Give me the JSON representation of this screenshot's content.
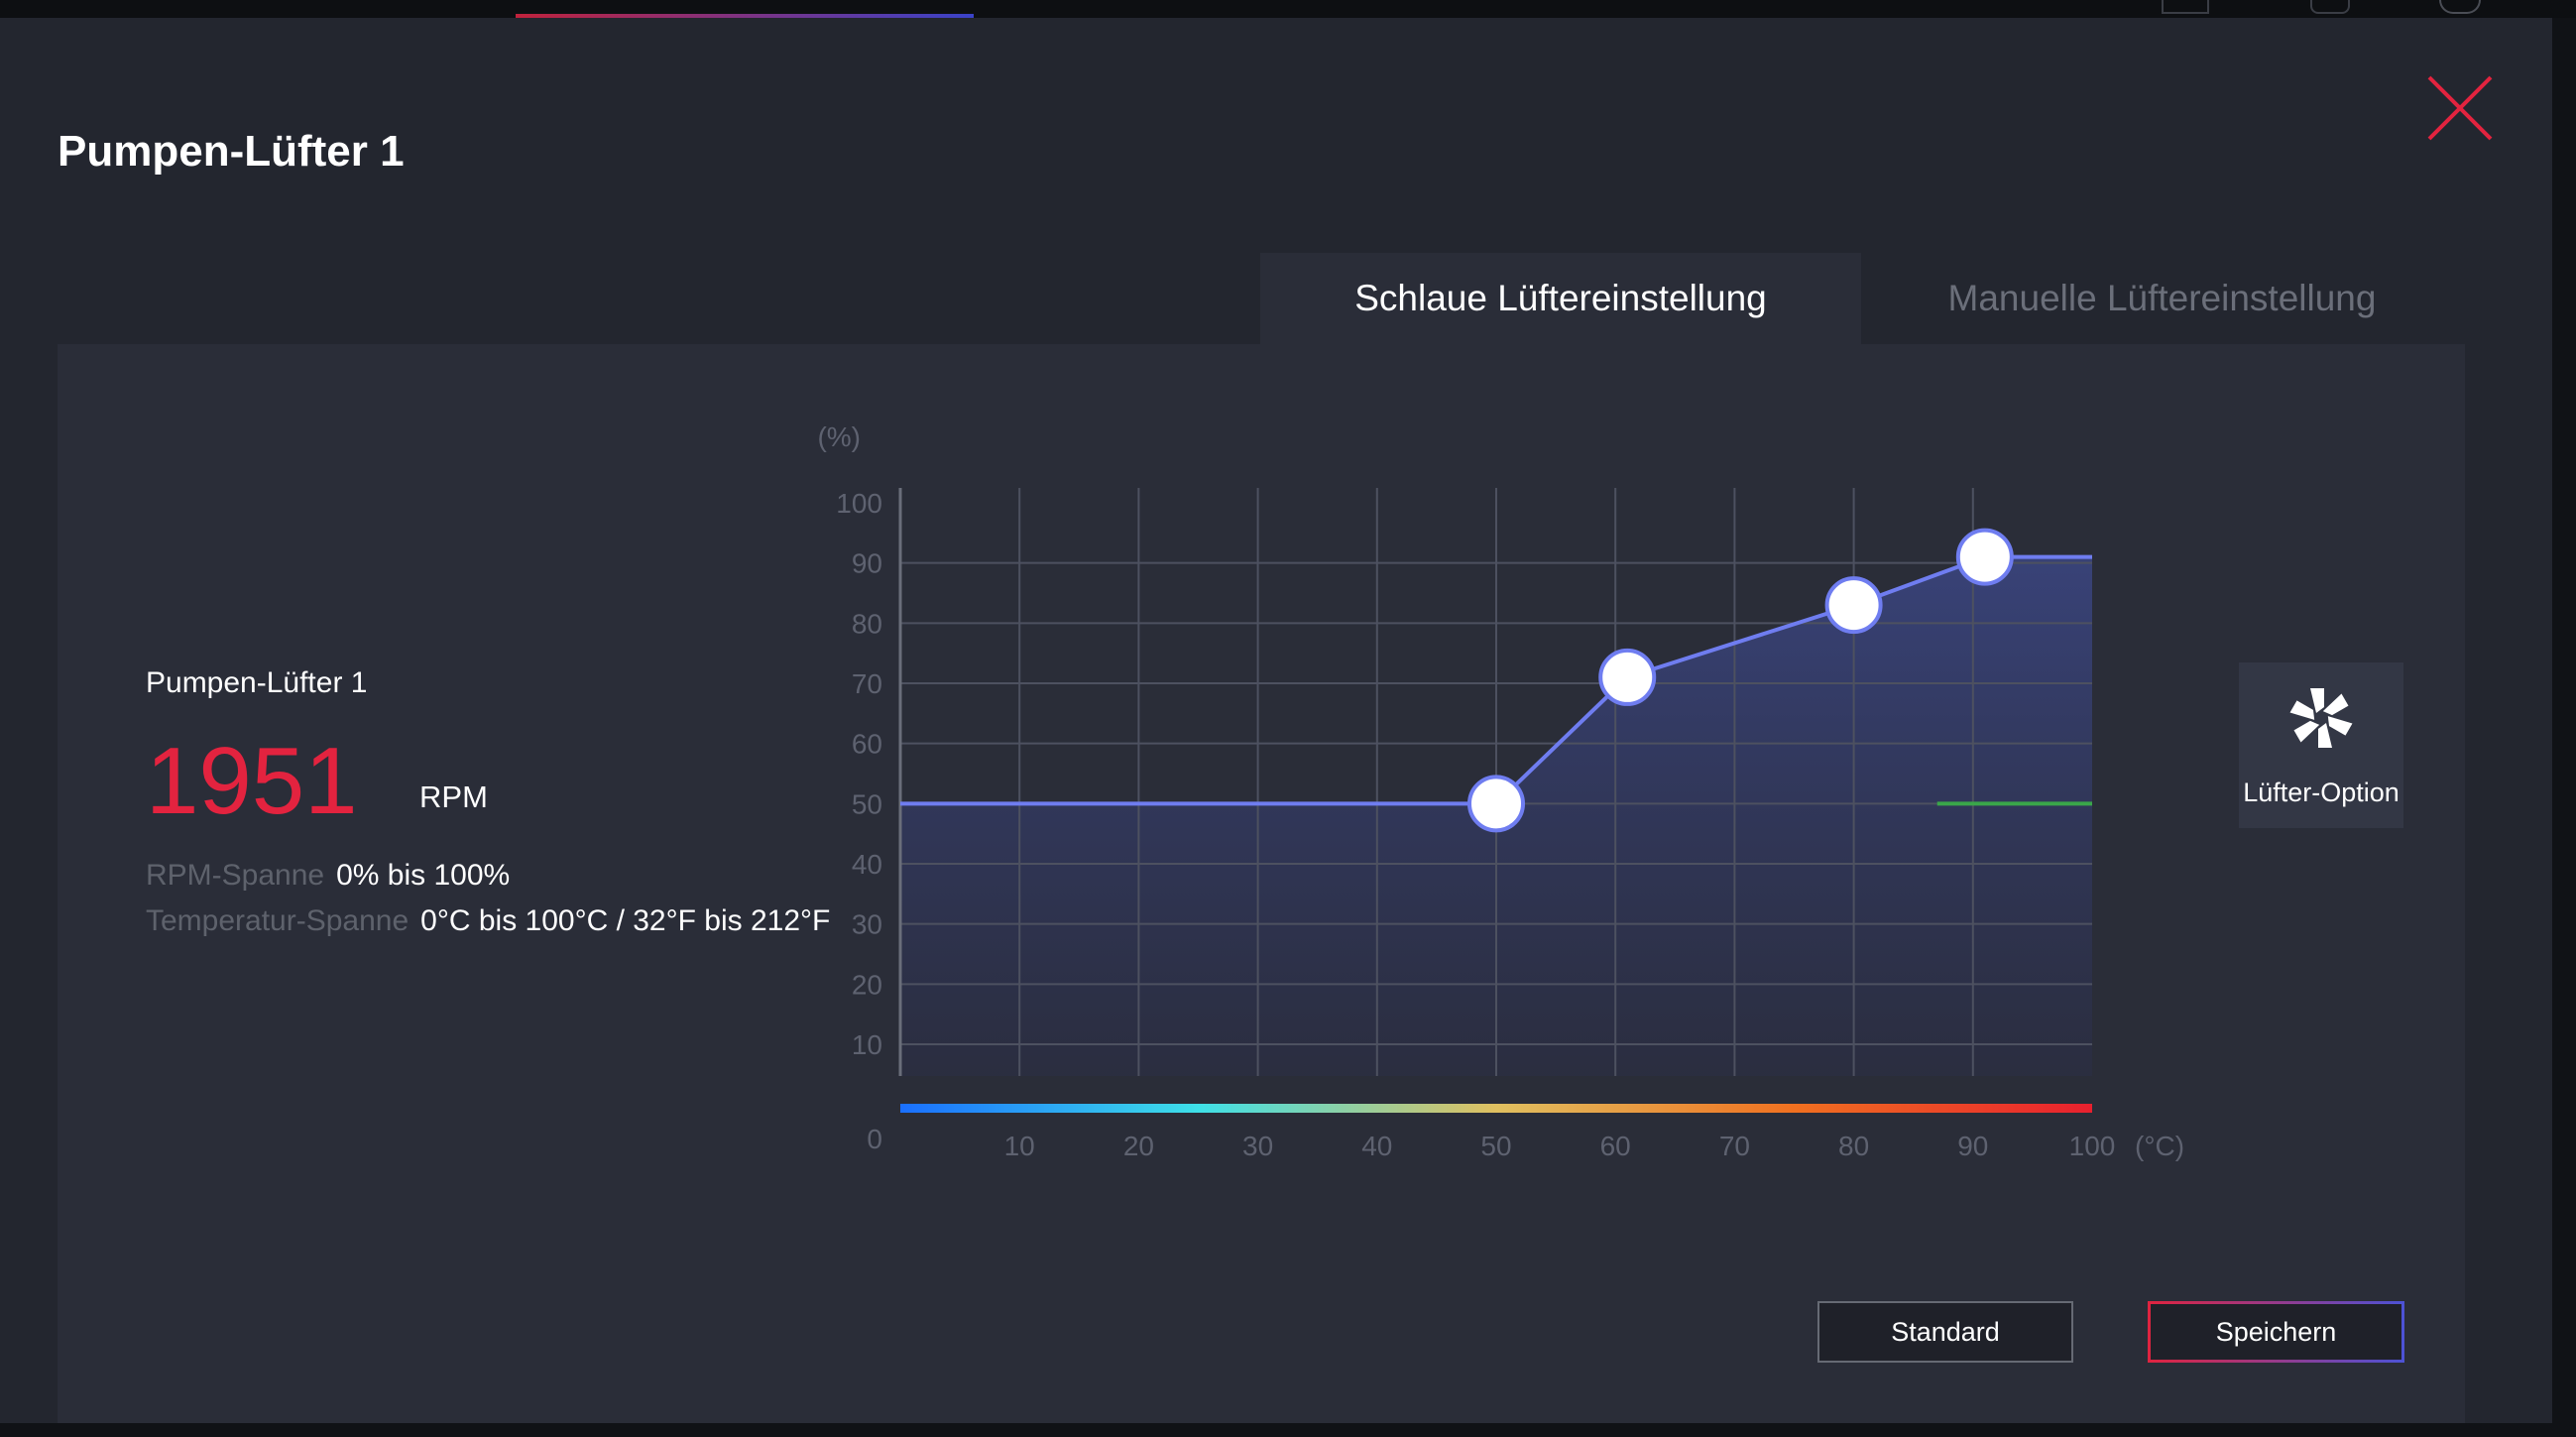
{
  "dialog": {
    "title": "Pumpen-Lüfter 1",
    "close_icon": "close-x-icon",
    "accent_color": "#e3233f"
  },
  "tabs": [
    {
      "label": "Schlaue Lüftereinstellung",
      "active": true
    },
    {
      "label": "Manuelle Lüftereinstellung",
      "active": false
    }
  ],
  "fan": {
    "name": "Pumpen-Lüfter 1",
    "rpm_value": "1951",
    "rpm_unit": "RPM",
    "rpm_range_label": "RPM-Spanne",
    "rpm_range_value": "0% bis 100%",
    "temp_range_label": "Temperatur-Spanne",
    "temp_range_value": "0°C bis 100°C / 32°F bis 212°F"
  },
  "chart_data": {
    "type": "line",
    "y_unit_label": "(%)",
    "x_unit_label": "(°C)",
    "x_ticks": [
      "10",
      "20",
      "30",
      "40",
      "50",
      "60",
      "70",
      "80",
      "90",
      "100"
    ],
    "y_ticks": [
      "100",
      "90",
      "80",
      "70",
      "60",
      "50",
      "40",
      "30",
      "20",
      "10"
    ],
    "origin_label": "0",
    "xlim": [
      0,
      100
    ],
    "ylim": [
      0,
      100
    ],
    "grid": true,
    "series": [
      {
        "x": [
          0,
          50,
          61,
          80,
          91,
          100
        ],
        "y": [
          50,
          50,
          71,
          83,
          91,
          91
        ]
      }
    ],
    "control_points": [
      {
        "x": 50,
        "y": 50
      },
      {
        "x": 61,
        "y": 71
      },
      {
        "x": 80,
        "y": 83
      },
      {
        "x": 91,
        "y": 91
      }
    ],
    "current_marker": {
      "x_from": 87,
      "x_to": 100,
      "y": 50
    },
    "line_color": "#6f7df0",
    "marker_color": "#3aa64a",
    "gradient_colors": [
      "#1a6fff",
      "#3ee0e8",
      "#e0c060",
      "#f07020",
      "#e8202e"
    ]
  },
  "fan_option": {
    "label": "Lüfter-Option",
    "icon": "fan-icon"
  },
  "buttons": {
    "standard": "Standard",
    "save": "Speichern"
  }
}
